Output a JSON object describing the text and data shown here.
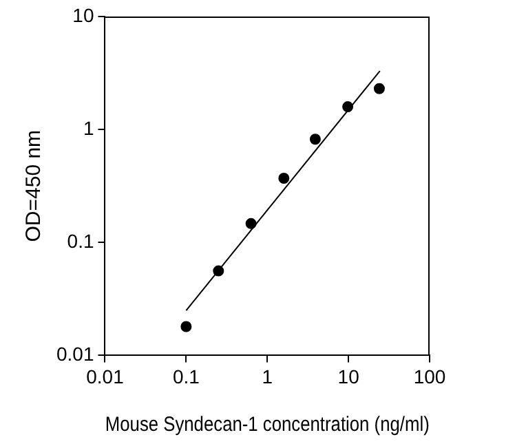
{
  "chart_data": {
    "type": "scatter",
    "xlabel": "Mouse Syndecan-1 concentration (ng/ml)",
    "ylabel": "OD=450 nm",
    "log": "xy",
    "grid": false,
    "marker": "circle",
    "xlim": [
      0.01,
      100
    ],
    "xticks": [
      0.01,
      0.1,
      1,
      10,
      100
    ],
    "ylim": [
      0.01,
      10
    ],
    "yticks": [
      0.01,
      0.1,
      1,
      10
    ],
    "series": [
      {
        "color": "#000000",
        "x": [
          0.1,
          0.25,
          0.63,
          1.6,
          3.9,
          9.8,
          24
        ],
        "values": [
          0.018,
          0.056,
          0.147,
          0.37,
          0.82,
          1.59,
          2.3
        ]
      },
      {
        "type": "line",
        "marker": "none",
        "line_style": "solid",
        "color": "#000000",
        "x": [
          0.1,
          24.4
        ],
        "values": [
          0.025,
          3.3
        ]
      }
    ]
  }
}
